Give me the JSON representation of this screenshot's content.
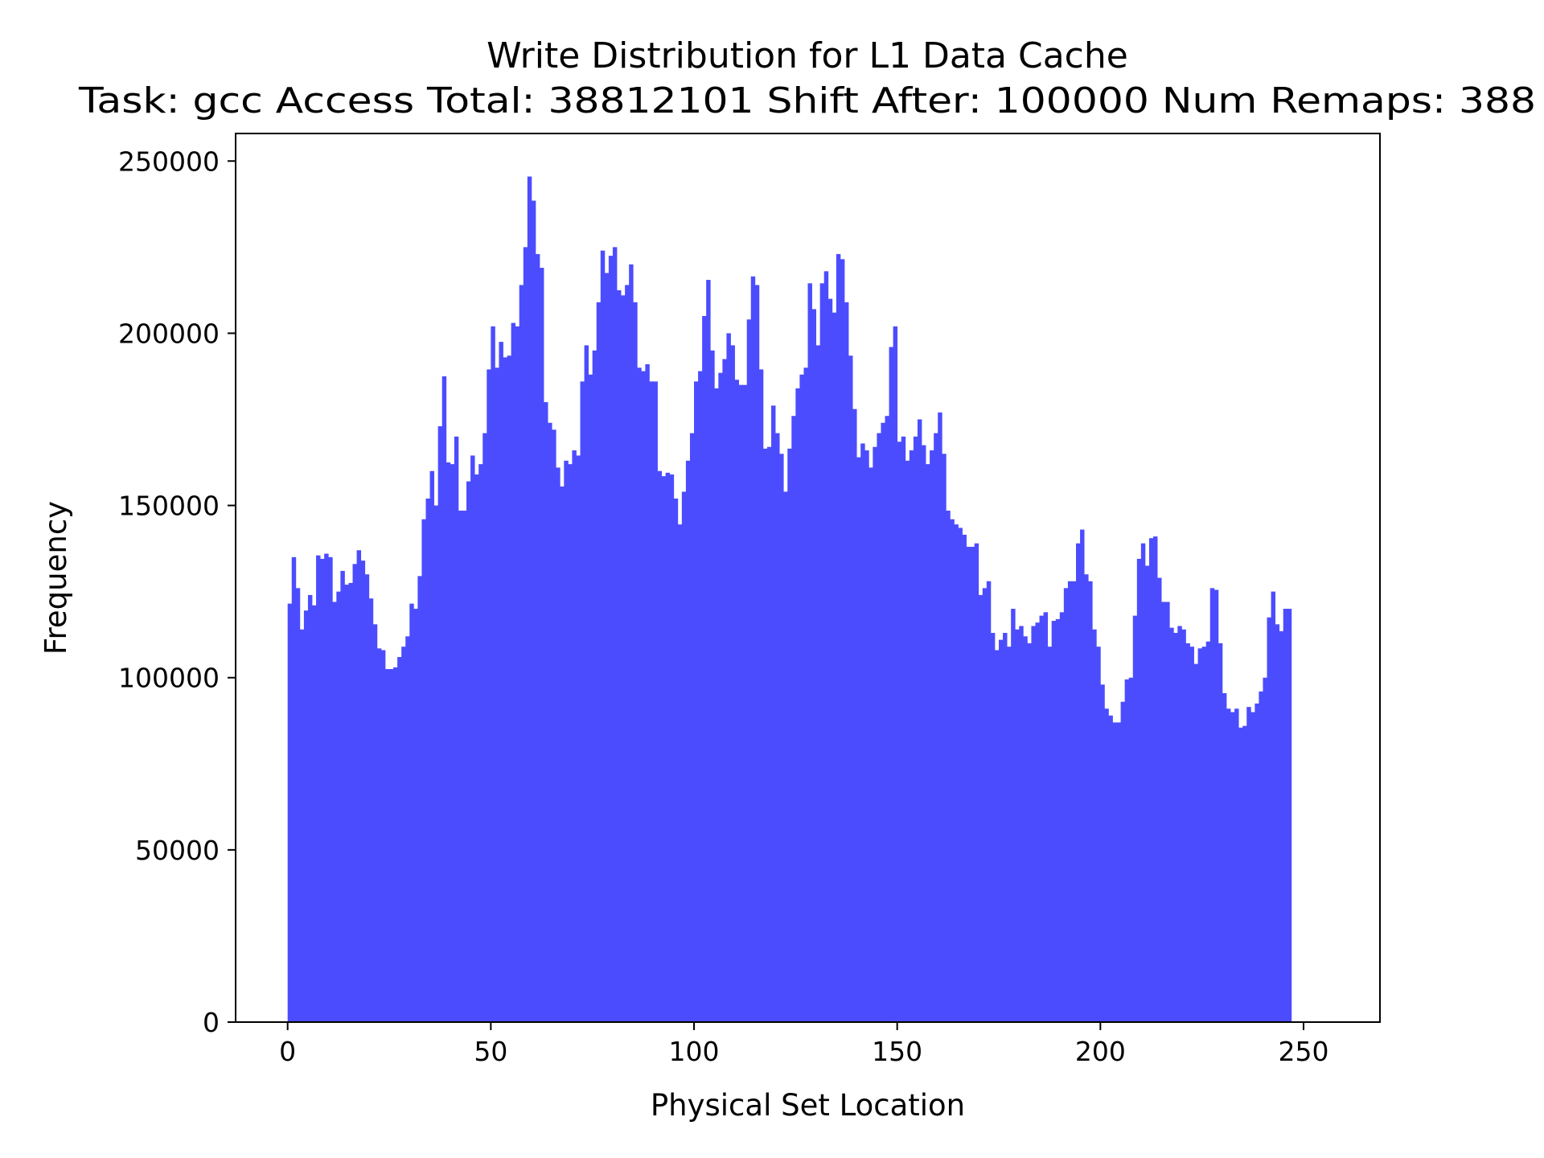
{
  "chart_data": {
    "type": "bar",
    "title": "Write Distribution for L1 Data Cache",
    "subtitle": "Task: gcc Access Total: 38812101 Shift After: 100000 Num Remaps: 388",
    "xlabel": "Physical Set Location",
    "ylabel": "Frequency",
    "xlim": [
      -12.8,
      268.8
    ],
    "ylim": [
      0,
      258000
    ],
    "xticks": [
      0,
      50,
      100,
      150,
      200,
      250
    ],
    "xtick_labels": [
      "0",
      "50",
      "100",
      "150",
      "200",
      "250"
    ],
    "yticks": [
      0,
      50000,
      100000,
      150000,
      200000,
      250000
    ],
    "ytick_labels": [
      "0",
      "50000",
      "100000",
      "150000",
      "200000",
      "250000"
    ],
    "bar_color": "#4c4cff",
    "bin_width": 1,
    "x_start": 0,
    "values": [
      121500,
      135000,
      126000,
      114000,
      119500,
      124000,
      121000,
      135500,
      134500,
      136000,
      135000,
      122000,
      125000,
      131000,
      127000,
      127500,
      133000,
      137000,
      134000,
      130000,
      123000,
      115500,
      108500,
      108000,
      102500,
      102500,
      103000,
      106000,
      109000,
      112000,
      121500,
      120000,
      129500,
      146000,
      152000,
      160000,
      150000,
      173000,
      187500,
      162500,
      162000,
      170000,
      148500,
      148500,
      157000,
      164500,
      159000,
      162000,
      171000,
      189500,
      202000,
      190000,
      197500,
      193000,
      193500,
      203000,
      202000,
      214000,
      225000,
      245500,
      238500,
      223000,
      219000,
      180000,
      174000,
      172000,
      161000,
      155500,
      163000,
      162000,
      166000,
      164500,
      186000,
      196500,
      188000,
      195000,
      209000,
      224000,
      217500,
      222500,
      225000,
      212500,
      211000,
      214000,
      220000,
      209000,
      190000,
      189000,
      191000,
      186000,
      186000,
      160000,
      158500,
      159500,
      159000,
      152000,
      144500,
      154000,
      163000,
      171000,
      186000,
      189000,
      205000,
      215500,
      195000,
      184000,
      188500,
      192500,
      200000,
      196500,
      186500,
      185000,
      185000,
      204000,
      216500,
      214000,
      189500,
      166500,
      167000,
      179000,
      171000,
      165000,
      154000,
      166500,
      176000,
      184000,
      188000,
      190000,
      214500,
      207000,
      196500,
      214500,
      218000,
      210000,
      206000,
      223000,
      221500,
      209000,
      193500,
      178000,
      164000,
      168000,
      166000,
      161000,
      167000,
      171000,
      174000,
      176000,
      196000,
      202000,
      168500,
      170000,
      163000,
      166000,
      170000,
      175000,
      167500,
      162000,
      166000,
      171000,
      177000,
      165000,
      148500,
      146000,
      144500,
      143500,
      141500,
      138000,
      138000,
      139000,
      124000,
      126000,
      128000,
      113000,
      108000,
      111000,
      113000,
      109000,
      120000,
      114000,
      115000,
      112000,
      110000,
      115000,
      116000,
      118000,
      119000,
      109000,
      116500,
      117000,
      119000,
      126000,
      128000,
      128000,
      139000,
      143000,
      130000,
      128000,
      114000,
      109000,
      98000,
      91000,
      89000,
      87000,
      87000,
      93000,
      99500,
      100000,
      118000,
      134500,
      139000,
      132500,
      140500,
      141000,
      129000,
      122000,
      122000,
      114500,
      113000,
      115000,
      114000,
      110000,
      109000,
      104000,
      108500,
      109000,
      110500,
      126000,
      125500,
      110000,
      95500,
      91000,
      90000,
      91000,
      85500,
      86000,
      91500,
      90000,
      92500,
      96000,
      100000,
      117500,
      125000,
      115500,
      113500,
      120000,
      120000
    ]
  }
}
